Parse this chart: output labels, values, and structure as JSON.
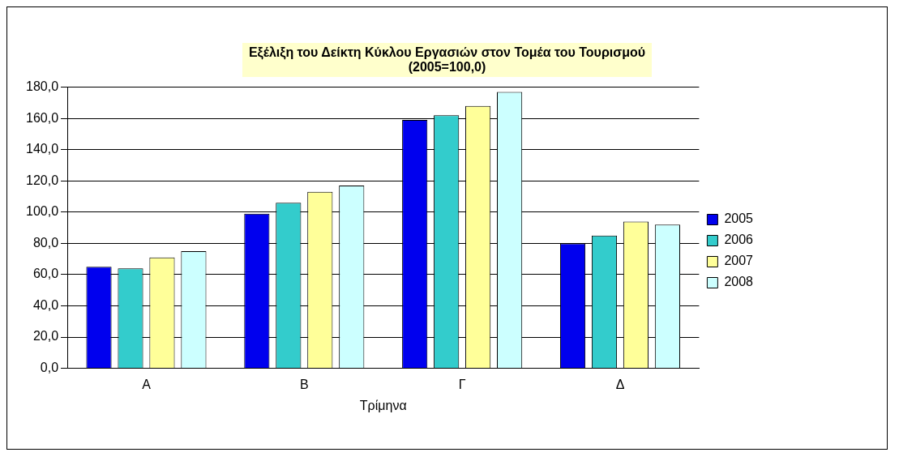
{
  "chart_data": {
    "type": "bar",
    "title": "Εξέλιξη του Δείκτη Κύκλου Εργασιών στον Τομέα του Τουρισμού",
    "subtitle": "(2005=100,0)",
    "xlabel": "Τρίμηνα",
    "categories": [
      "Α",
      "Β",
      "Γ",
      "Δ"
    ],
    "series": [
      {
        "name": "2005",
        "color": "#0000ee",
        "values": [
          65,
          99,
          159,
          80
        ]
      },
      {
        "name": "2006",
        "color": "#33cccc",
        "values": [
          64,
          106,
          162,
          85
        ]
      },
      {
        "name": "2007",
        "color": "#ffff99",
        "values": [
          71,
          113,
          168,
          94
        ]
      },
      {
        "name": "2008",
        "color": "#ccffff",
        "values": [
          75,
          117,
          177,
          92
        ]
      }
    ],
    "ylim": [
      0,
      180
    ],
    "yticks": [
      {
        "value": 0,
        "label": "0,0"
      },
      {
        "value": 20,
        "label": "20,0"
      },
      {
        "value": 40,
        "label": "40,0"
      },
      {
        "value": 60,
        "label": "60,0"
      },
      {
        "value": 80,
        "label": "80,0"
      },
      {
        "value": 100,
        "label": "100,0"
      },
      {
        "value": 120,
        "label": "120,0"
      },
      {
        "value": 140,
        "label": "140,0"
      },
      {
        "value": 160,
        "label": "160,0"
      },
      {
        "value": 180,
        "label": "180,0"
      }
    ],
    "grid": "y",
    "legend": "right"
  }
}
